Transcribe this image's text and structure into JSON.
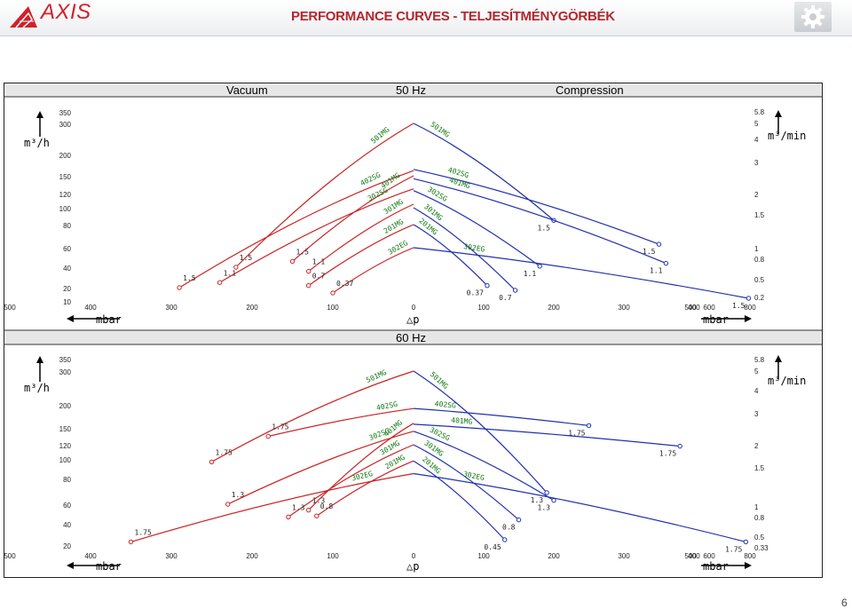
{
  "header": {
    "logo_text": "AXIS",
    "title": "PERFORMANCE CURVES - TELJESÍTMÉNYGÖRBÉK"
  },
  "page_number": "6",
  "colors": {
    "vacuum": "#cc2222",
    "compression": "#2030b0",
    "label_green": "#117711",
    "band": "#e6e6e6"
  },
  "icons": [
    "axis-logo-icon",
    "gear-icon"
  ],
  "bands": {
    "top": {
      "left": "Vacuum",
      "center": "50 Hz",
      "right": "Compression"
    },
    "middle": {
      "center": "60 Hz"
    }
  },
  "axes": {
    "flow_label_left": "m³/h",
    "flow_label_right": "m³/min",
    "pressure_label_left": "mbar",
    "pressure_label_center": "△p",
    "pressure_label_right": "mbar",
    "x_ticks": [
      "500",
      "400",
      "300",
      "200",
      "100",
      "0",
      "100",
      "200",
      "300",
      "400",
      "500",
      "600",
      "800"
    ]
  },
  "chart_data": [
    {
      "type": "line",
      "title": "50 Hz",
      "xlabel": "△p (mbar)",
      "ylabel": "m³/h",
      "y_ticks_left": [
        "350",
        "300",
        "200",
        "150",
        "120",
        "100",
        "80",
        "60",
        "40",
        "20",
        "10"
      ],
      "y_ticks_right": [
        "5.8",
        "5",
        "4",
        "3",
        "2",
        "1.5",
        "1",
        "0.8",
        "0.5",
        "0.2"
      ],
      "vacuum": [
        {
          "name": "501MG",
          "points": [
            [
              0,
              300
            ],
            [
              220,
              40
            ]
          ],
          "end_label": "1.5"
        },
        {
          "name": "402SG",
          "points": [
            [
              0,
              162
            ],
            [
              290,
              20
            ]
          ],
          "end_label": "1.5"
        },
        {
          "name": "401MG",
          "points": [
            [
              0,
              150
            ],
            [
              150,
              46
            ]
          ],
          "end_label": "1.5"
        },
        {
          "name": "302SG",
          "points": [
            [
              0,
              128
            ],
            [
              240,
              25
            ]
          ],
          "end_label": "1.1"
        },
        {
          "name": "301MG",
          "points": [
            [
              0,
              105
            ],
            [
              130,
              36
            ]
          ],
          "end_label": "1.1"
        },
        {
          "name": "201MG",
          "points": [
            [
              0,
              80
            ],
            [
              130,
              22
            ]
          ],
          "end_label": "0.7"
        },
        {
          "name": "302EG",
          "points": [
            [
              0,
              60
            ],
            [
              100,
              16
            ]
          ],
          "end_label": "0.37"
        }
      ],
      "compression": [
        {
          "name": "501MG",
          "points": [
            [
              0,
              300
            ],
            [
              200,
              85
            ]
          ],
          "end_label": "1.5"
        },
        {
          "name": "402SG",
          "points": [
            [
              0,
              165
            ],
            [
              350,
              63
            ]
          ],
          "end_label": "1.5"
        },
        {
          "name": "401MG",
          "points": [
            [
              0,
              145
            ],
            [
              360,
              44
            ]
          ],
          "end_label": "1.1"
        },
        {
          "name": "302SG",
          "points": [
            [
              0,
              125
            ],
            [
              180,
              41
            ]
          ],
          "end_label": "1.1"
        },
        {
          "name": "301MG",
          "points": [
            [
              0,
              100
            ],
            [
              145,
              18
            ]
          ],
          "end_label": "0.7"
        },
        {
          "name": "201MG",
          "points": [
            [
              0,
              80
            ],
            [
              105,
              22
            ]
          ],
          "end_label": "0.37"
        },
        {
          "name": "302EG",
          "points": [
            [
              0,
              60
            ],
            [
              700,
              12
            ]
          ],
          "end_label": "1.5"
        }
      ]
    },
    {
      "type": "line",
      "title": "60 Hz",
      "xlabel": "△p (mbar)",
      "ylabel": "m³/h",
      "y_ticks_left": [
        "350",
        "300",
        "200",
        "150",
        "120",
        "100",
        "80",
        "60",
        "40",
        "20"
      ],
      "y_ticks_right": [
        "5.8",
        "5",
        "4",
        "3",
        "2",
        "1.5",
        "1",
        "0.8",
        "0.5",
        "0.33"
      ],
      "vacuum": [
        {
          "name": "501MG",
          "points": [
            [
              0,
              300
            ],
            [
              250,
              97
            ]
          ],
          "end_label": "1.75"
        },
        {
          "name": "402SG",
          "points": [
            [
              0,
              192
            ],
            [
              180,
              135
            ]
          ],
          "end_label": "1.75"
        },
        {
          "name": "401MG",
          "points": [
            [
              0,
              160
            ],
            [
              130,
              54
            ]
          ],
          "end_label": "1.3"
        },
        {
          "name": "302SG",
          "points": [
            [
              0,
              144
            ],
            [
              230,
              60
            ]
          ],
          "end_label": "1.3"
        },
        {
          "name": "301MG",
          "points": [
            [
              0,
              120
            ],
            [
              155,
              47
            ]
          ],
          "end_label": "1.3"
        },
        {
          "name": "201MG",
          "points": [
            [
              0,
              98
            ],
            [
              120,
              48
            ]
          ],
          "end_label": "0.8"
        },
        {
          "name": "302EG",
          "points": [
            [
              0,
              85
            ],
            [
              350,
              23
            ]
          ],
          "end_label": "1.75"
        }
      ],
      "compression": [
        {
          "name": "501MG",
          "points": [
            [
              0,
              300
            ],
            [
              190,
              69
            ]
          ],
          "end_label": "1.3"
        },
        {
          "name": "402SG",
          "points": [
            [
              0,
              192
            ],
            [
              250,
              155
            ]
          ],
          "end_label": "1.75"
        },
        {
          "name": "401MG",
          "points": [
            [
              0,
              158
            ],
            [
              380,
              118
            ]
          ],
          "end_label": "1.75"
        },
        {
          "name": "302SG",
          "points": [
            [
              0,
              144
            ],
            [
              200,
              63
            ]
          ],
          "end_label": "1.3"
        },
        {
          "name": "301MG",
          "points": [
            [
              0,
              120
            ],
            [
              150,
              44
            ]
          ],
          "end_label": "0.8"
        },
        {
          "name": "201MG",
          "points": [
            [
              0,
              98
            ],
            [
              130,
              25
            ]
          ],
          "end_label": "0.45"
        },
        {
          "name": "302EG",
          "points": [
            [
              0,
              85
            ],
            [
              630,
              23
            ]
          ],
          "end_label": "1.75"
        }
      ]
    }
  ]
}
